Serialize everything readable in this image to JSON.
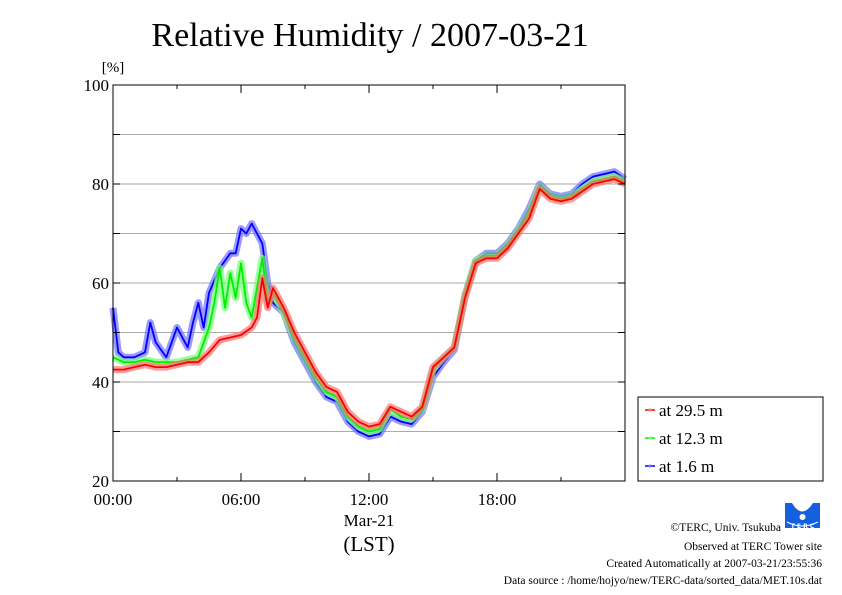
{
  "chart_data": {
    "type": "line",
    "title": "Relative Humidity / 2007-03-21",
    "ylabel": "[%]",
    "xlabel_date": "Mar-21",
    "xlabel": "(LST)",
    "ylim": [
      20,
      100
    ],
    "xlim_hours": [
      0,
      24
    ],
    "yticks": [
      20,
      40,
      60,
      80,
      100
    ],
    "ytick_labels": [
      "20",
      "40",
      "60",
      "80",
      "100"
    ],
    "xticks_hours": [
      0,
      6,
      12,
      18
    ],
    "xtick_labels": [
      "00:00",
      "06:00",
      "12:00",
      "18:00"
    ],
    "grid": true,
    "legend_position": "right",
    "series": [
      {
        "name": "at 29.5 m",
        "color": "#ff0000",
        "x": [
          0,
          0.5,
          1,
          1.5,
          2,
          2.5,
          3,
          3.5,
          4,
          4.5,
          5,
          5.5,
          6,
          6.5,
          6.75,
          7,
          7.25,
          7.5,
          8,
          8.5,
          9,
          9.5,
          10,
          10.5,
          11,
          11.5,
          12,
          12.5,
          13,
          13.5,
          14,
          14.5,
          15,
          15.5,
          16,
          16.5,
          17,
          17.5,
          18,
          18.5,
          19,
          19.5,
          20,
          20.5,
          21,
          21.5,
          22,
          22.5,
          23,
          23.5,
          24
        ],
        "values": [
          42.5,
          42.5,
          43,
          43.5,
          43,
          43,
          43.5,
          44,
          44,
          46,
          48.5,
          49,
          49.5,
          51,
          53,
          61,
          55,
          59,
          55,
          50,
          46,
          42,
          39,
          38,
          34,
          32,
          31,
          31.5,
          35,
          34,
          33,
          35,
          43,
          45,
          47,
          57,
          64,
          65,
          65,
          67,
          70,
          73,
          79,
          77,
          76.5,
          77,
          78.5,
          80,
          80.5,
          81,
          80
        ]
      },
      {
        "name": "at 12.3 m",
        "color": "#00ee00",
        "x": [
          0,
          0.5,
          1,
          1.5,
          2,
          2.5,
          3,
          3.5,
          4,
          4.5,
          4.75,
          5,
          5.25,
          5.5,
          5.75,
          6,
          6.25,
          6.5,
          7,
          7.25,
          7.5,
          8,
          8.5,
          9,
          9.5,
          10,
          10.5,
          11,
          11.5,
          12,
          12.5,
          13,
          13.5,
          14,
          14.5,
          15,
          15.5,
          16,
          16.5,
          17,
          17.5,
          18,
          18.5,
          19,
          19.5,
          20,
          20.5,
          21,
          21.5,
          22,
          22.5,
          23,
          23.5,
          24
        ],
        "values": [
          45,
          44,
          44,
          44.5,
          44,
          44,
          44,
          44.5,
          45,
          51,
          56,
          63,
          55,
          62,
          57,
          64,
          56,
          53,
          65,
          56,
          58,
          54,
          49,
          45,
          41,
          38,
          37,
          33,
          31,
          30,
          30.5,
          34.5,
          33,
          32.5,
          34.5,
          42.5,
          45,
          47,
          57.5,
          64.5,
          65.5,
          65.5,
          67.5,
          70.5,
          74,
          79.5,
          77.5,
          77,
          77.5,
          79,
          80.5,
          81,
          81.5,
          80.5
        ]
      },
      {
        "name": "at 1.6 m",
        "color": "#0000ff",
        "x": [
          0,
          0.25,
          0.5,
          1,
          1.5,
          1.75,
          2,
          2.5,
          3,
          3.5,
          3.75,
          4,
          4.25,
          4.5,
          5,
          5.5,
          5.75,
          6,
          6.25,
          6.5,
          6.75,
          7,
          7.25,
          7.5,
          8,
          8.5,
          9,
          9.5,
          10,
          10.5,
          11,
          11.5,
          12,
          12.5,
          13,
          13.5,
          14,
          14.5,
          15,
          15.5,
          16,
          16.5,
          17,
          17.5,
          18,
          18.5,
          19,
          19.5,
          20,
          20.5,
          21,
          21.5,
          22,
          22.5,
          23,
          23.5,
          24
        ],
        "values": [
          55,
          46,
          45,
          45,
          46,
          52,
          48,
          45,
          51,
          47,
          52,
          56,
          51,
          58,
          63,
          66,
          66,
          71,
          70,
          72,
          70,
          68,
          60,
          56,
          54,
          48,
          44,
          40,
          37,
          36,
          32,
          30,
          29,
          29.5,
          33,
          32,
          31.5,
          34,
          41,
          44,
          46.5,
          57.5,
          64.5,
          66,
          66,
          68,
          71,
          75,
          80,
          78,
          77.5,
          78,
          80,
          81.5,
          82,
          82.5,
          81
        ]
      }
    ]
  },
  "footer": {
    "copyright": "©TERC, Univ. Tsukuba",
    "observed": "Observed at TERC Tower site",
    "created": "Created Automatically at 2007-03-21/23:55:36",
    "source": "Data source : /home/hojyo/new/TERC-data/sorted_data/MET.10s.dat",
    "logo_text": "TERC"
  }
}
